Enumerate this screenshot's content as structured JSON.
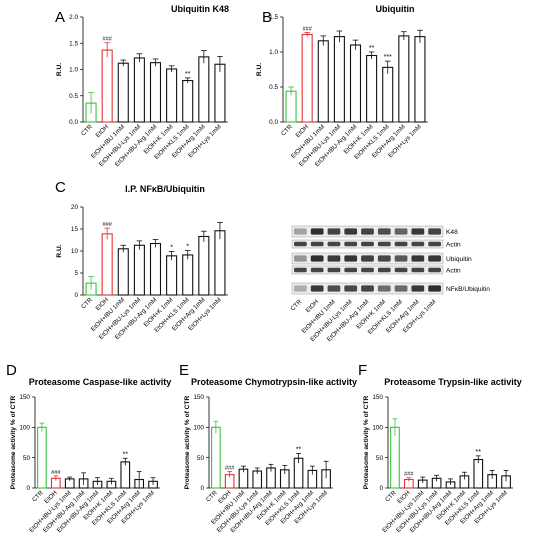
{
  "colors": {
    "control": "#3cc13c",
    "ethanol": "#e33232",
    "treatment": "#111111",
    "blot_bg": "#ececec",
    "band": "#1a1a1a"
  },
  "chart_data": [
    {
      "panel": "A",
      "type": "bar",
      "title": "Ubiquitin K48",
      "xlabel": "",
      "ylabel": "R.U.",
      "ylim": [
        0,
        2.0
      ],
      "yticks": [
        0,
        0.5,
        1.0,
        1.5,
        2.0
      ],
      "tick_labels": [
        "0.0",
        "0.5",
        "1.0",
        "1.5",
        "2.0"
      ],
      "grid": false,
      "categories": [
        "CTR",
        "EtOH",
        "EtOH+IBU 1mM",
        "EtOH+IBU-Lys 1mM",
        "EtOH+IBU-Arg 1mM",
        "EtOH+K 1mM",
        "EtOH+KLS 1mM",
        "EtOH+Arg 1mM",
        "EtOH+Lys 1mM"
      ],
      "values": [
        0.36,
        1.37,
        1.12,
        1.22,
        1.13,
        1.01,
        0.79,
        1.24,
        1.1
      ],
      "errors": [
        0.2,
        0.14,
        0.06,
        0.08,
        0.07,
        0.06,
        0.05,
        0.12,
        0.15
      ],
      "significance": [
        "",
        "###",
        "",
        "",
        "",
        "",
        "**",
        "",
        ""
      ]
    },
    {
      "panel": "B",
      "type": "bar",
      "title": "Ubiquitin",
      "xlabel": "",
      "ylabel": "R.U.",
      "ylim": [
        0,
        1.5
      ],
      "yticks": [
        0,
        0.5,
        1.0,
        1.5
      ],
      "tick_labels": [
        "0.0",
        "0.5",
        "1.0",
        "1.5"
      ],
      "grid": false,
      "categories": [
        "CTR",
        "EtOH",
        "EtOH+IBU 1mM",
        "EtOH+IBU-Lys 1mM",
        "EtOH+IBU-Arg 1mM",
        "EtOH+K 1mM",
        "EtOH+KLS 1mM",
        "EtOH+Arg 1mM",
        "EtOH+Lys 1mM"
      ],
      "values": [
        0.44,
        1.25,
        1.16,
        1.22,
        1.1,
        0.95,
        0.78,
        1.23,
        1.22
      ],
      "errors": [
        0.06,
        0.03,
        0.07,
        0.08,
        0.07,
        0.05,
        0.09,
        0.06,
        0.09
      ],
      "significance": [
        "",
        "###",
        "",
        "",
        "",
        "**",
        "***",
        "",
        ""
      ]
    },
    {
      "panel": "C",
      "type": "bar",
      "title": "I.P. NFκB/Ubiquitin",
      "xlabel": "",
      "ylabel": "R.U.",
      "ylim": [
        0,
        20
      ],
      "yticks": [
        0,
        5,
        10,
        15,
        20
      ],
      "tick_labels": [
        "0",
        "5",
        "10",
        "15",
        "20"
      ],
      "grid": false,
      "categories": [
        "CTR",
        "EtOH",
        "EtOH+IBU 1mM",
        "EtOH+IBU-Lys 1mM",
        "EtOH+IBU-Arg 1mM",
        "EtOH+K 1mM",
        "EtOH+KLS 1mM",
        "EtOH+Arg 1mM",
        "EtOH+Lys 1mM"
      ],
      "values": [
        2.7,
        13.9,
        10.5,
        11.3,
        11.7,
        8.9,
        9.1,
        13.3,
        14.6
      ],
      "errors": [
        1.5,
        1.3,
        0.8,
        1.0,
        0.9,
        1.0,
        1.0,
        1.2,
        1.9
      ],
      "significance": [
        "",
        "###",
        "",
        "",
        "",
        "*",
        "*",
        "",
        ""
      ]
    },
    {
      "panel": "D",
      "type": "bar",
      "title": "Proteasome Caspase-like activity",
      "xlabel": "",
      "ylabel": "Proteasome activity % of CTR",
      "ylim": [
        0,
        150
      ],
      "yticks": [
        0,
        50,
        100,
        150
      ],
      "tick_labels": [
        "0",
        "50",
        "100",
        "150"
      ],
      "grid": false,
      "categories": [
        "CTR",
        "EtOH",
        "EtOH+IBU-Lys 1mM",
        "EtOH+IBU-Arg 1mM",
        "EtOH+IBU-Arg 1mM",
        "EtOH+K 1mM",
        "EtOH+KLS 1mM",
        "EtOH+Arg 1mM",
        "EtOH+Lys 1mM"
      ],
      "values": [
        100,
        16,
        15,
        15,
        11,
        11,
        43,
        14,
        11
      ],
      "errors": [
        7,
        4,
        3,
        10,
        6,
        5,
        6,
        13,
        6
      ],
      "significance": [
        "",
        "###",
        "",
        "",
        "",
        "",
        "**",
        "",
        ""
      ]
    },
    {
      "panel": "E",
      "type": "bar",
      "title": "Proteasome Chymotrypsin-like activity",
      "xlabel": "",
      "ylabel": "Proteasome activity % of CTR",
      "ylim": [
        0,
        150
      ],
      "yticks": [
        0,
        50,
        100,
        150
      ],
      "tick_labels": [
        "0",
        "50",
        "100",
        "150"
      ],
      "grid": false,
      "categories": [
        "CTR",
        "EtOH",
        "EtOH+IBU 1mM",
        "EtOH+IBU-Lys 1mM",
        "EtOH+IBU-Arg 1mM",
        "EtOH+K 1mM",
        "EtOH+KLS 1mM",
        "EtOH+Arg 1mM",
        "EtOH+Lys 1mM"
      ],
      "values": [
        100,
        22,
        31,
        28,
        33,
        30,
        49,
        29,
        30
      ],
      "errors": [
        10,
        5,
        5,
        5,
        6,
        7,
        8,
        7,
        14
      ],
      "significance": [
        "",
        "###",
        "",
        "",
        "",
        "",
        "**",
        "",
        ""
      ]
    },
    {
      "panel": "F",
      "type": "bar",
      "title": "Proteasome Trypsin-like activity",
      "xlabel": "",
      "ylabel": "Proteasome activity % of CTR",
      "ylim": [
        0,
        150
      ],
      "yticks": [
        0,
        50,
        100,
        150
      ],
      "tick_labels": [
        "0",
        "50",
        "100",
        "150"
      ],
      "grid": false,
      "categories": [
        "CTR",
        "EtOH",
        "EtOH+IBU-Lys 1mM",
        "EtOH+IBU-Lys 1mM",
        "EtOH+IBU-Arg 1mM",
        "EtOH+K 1mM",
        "EtOH+KLS 1mM",
        "EtOH+Arg 1mM",
        "EtOH+Lys 1mM"
      ],
      "values": [
        100,
        14,
        13,
        16,
        10,
        20,
        47,
        22,
        20
      ],
      "errors": [
        14,
        3,
        5,
        5,
        5,
        6,
        6,
        7,
        9
      ],
      "significance": [
        "",
        "###",
        "",
        "",
        "",
        "",
        "**",
        "",
        ""
      ]
    }
  ],
  "western_blot": {
    "bands": [
      "K48",
      "Actin",
      "Ubiquitin",
      "Actin",
      "NFκB/Ubiquitin"
    ],
    "lanes": [
      "CTR",
      "EtOH",
      "EtOH+IBU 1mM",
      "EtOH+IBU-Lys 1mM",
      "EtOH+IBU-Arg 1mM",
      "EtOH+K 1mM",
      "EtOH+KLS 1mM",
      "EtOH+Arg 1mM",
      "EtOH+Lys 1mM"
    ],
    "intensities": [
      [
        0.35,
        0.9,
        0.8,
        0.85,
        0.8,
        0.75,
        0.65,
        0.85,
        0.8
      ],
      [
        0.8,
        0.8,
        0.8,
        0.8,
        0.8,
        0.8,
        0.8,
        0.8,
        0.8
      ],
      [
        0.4,
        0.9,
        0.85,
        0.88,
        0.82,
        0.78,
        0.7,
        0.86,
        0.86
      ],
      [
        0.8,
        0.8,
        0.8,
        0.8,
        0.8,
        0.8,
        0.8,
        0.8,
        0.8
      ],
      [
        0.3,
        0.85,
        0.75,
        0.78,
        0.8,
        0.6,
        0.62,
        0.85,
        0.9
      ]
    ]
  }
}
